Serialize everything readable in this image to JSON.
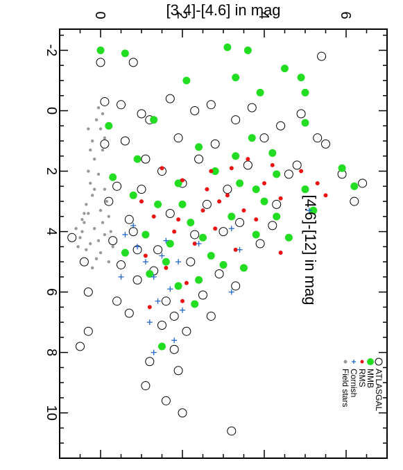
{
  "chart_data": {
    "type": "scatter",
    "title": "",
    "xlabel": "[3.4]-[4.6] in mag",
    "ylabel": "[4.6]-[12] in mag",
    "xlim": [
      -1.0,
      7.0
    ],
    "ylim": [
      11.5,
      -2.7
    ],
    "x_ticks": [
      0,
      2,
      4,
      6
    ],
    "y_ticks": [
      -2,
      0,
      2,
      4,
      6,
      8,
      10
    ],
    "orientation": "rotated 90 degrees clockwise",
    "legend": {
      "placement": "bottom-right",
      "entries": [
        {
          "label": "ATLASGAL",
          "marker": "open-circle",
          "color": "#000000"
        },
        {
          "label": "MMB",
          "marker": "filled-circle",
          "color": "#22dd22"
        },
        {
          "label": "RMS",
          "marker": "small-dot",
          "color": "#ee1111"
        },
        {
          "label": "Cornish",
          "marker": "plus",
          "color": "#2266cc"
        },
        {
          "label": "Field stars",
          "marker": "small-dot",
          "color": "#999999"
        }
      ]
    },
    "series": [
      {
        "name": "ATLASGAL",
        "points": [
          [
            0.0,
            -1.6
          ],
          [
            0.8,
            -1.6
          ],
          [
            5.4,
            -1.8
          ],
          [
            0.1,
            -0.3
          ],
          [
            0.5,
            -0.2
          ],
          [
            1.0,
            0.1
          ],
          [
            1.7,
            -0.4
          ],
          [
            2.3,
            0.0
          ],
          [
            2.7,
            -0.2
          ],
          [
            3.3,
            0.3
          ],
          [
            3.7,
            -0.1
          ],
          [
            4.4,
            0.5
          ],
          [
            4.9,
            0.1
          ],
          [
            5.3,
            0.9
          ],
          [
            5.5,
            1.1
          ],
          [
            4.8,
            1.8
          ],
          [
            5.9,
            2.1
          ],
          [
            6.4,
            2.4
          ],
          [
            6.2,
            3.0
          ],
          [
            0.1,
            1.1
          ],
          [
            0.4,
            2.5
          ],
          [
            0.7,
            3.6
          ],
          [
            0.9,
            4.6
          ],
          [
            1.3,
            5.3
          ],
          [
            1.6,
            6.3
          ],
          [
            2.1,
            7.3
          ],
          [
            2.5,
            6.1
          ],
          [
            1.8,
            7.9
          ],
          [
            1.2,
            8.3
          ],
          [
            1.1,
            9.1
          ],
          [
            1.6,
            9.6
          ],
          [
            2.0,
            10.0
          ],
          [
            3.2,
            10.6
          ],
          [
            -0.4,
            5.0
          ],
          [
            -0.7,
            4.2
          ],
          [
            -0.3,
            6.0
          ],
          [
            -0.3,
            7.3
          ],
          [
            -0.5,
            7.8
          ],
          [
            0.9,
            5.6
          ],
          [
            1.4,
            4.6
          ],
          [
            1.7,
            3.4
          ],
          [
            2.0,
            2.4
          ],
          [
            2.4,
            1.6
          ],
          [
            2.8,
            1.1
          ],
          [
            3.1,
            2.6
          ],
          [
            3.4,
            3.7
          ],
          [
            3.9,
            4.4
          ],
          [
            4.3,
            3.1
          ],
          [
            4.6,
            2.1
          ],
          [
            2.9,
            5.4
          ],
          [
            2.3,
            4.1
          ],
          [
            1.0,
            2.6
          ],
          [
            0.6,
            1.0
          ],
          [
            1.2,
            0.3
          ],
          [
            1.9,
            0.9
          ],
          [
            3.6,
            1.8
          ],
          [
            4.0,
            0.9
          ],
          [
            0.3,
            4.3
          ],
          [
            0.5,
            5.1
          ],
          [
            0.7,
            6.7
          ],
          [
            1.5,
            7.1
          ],
          [
            2.6,
            3.1
          ],
          [
            3.0,
            4.0
          ],
          [
            1.1,
            1.6
          ],
          [
            2.2,
            5.0
          ],
          [
            1.5,
            2.0
          ],
          [
            0.2,
            3.0
          ],
          [
            0.8,
            4.0
          ],
          [
            4.2,
            3.8
          ],
          [
            3.3,
            5.8
          ],
          [
            2.7,
            6.8
          ],
          [
            1.9,
            8.6
          ],
          [
            0.4,
            6.3
          ],
          [
            1.8,
            6.8
          ]
        ]
      },
      {
        "name": "MMB",
        "points": [
          [
            0.0,
            -2.0
          ],
          [
            0.6,
            -1.9
          ],
          [
            3.1,
            -2.1
          ],
          [
            3.6,
            -2.0
          ],
          [
            4.5,
            -1.4
          ],
          [
            4.9,
            -1.1
          ],
          [
            3.3,
            -1.1
          ],
          [
            2.1,
            -1.0
          ],
          [
            3.9,
            -0.6
          ],
          [
            5.0,
            -0.6
          ],
          [
            5.0,
            0.4
          ],
          [
            1.3,
            0.3
          ],
          [
            0.2,
            0.5
          ],
          [
            2.4,
            1.2
          ],
          [
            2.8,
            2.0
          ],
          [
            3.3,
            1.5
          ],
          [
            3.7,
            0.9
          ],
          [
            4.2,
            1.4
          ],
          [
            1.9,
            2.4
          ],
          [
            1.4,
            3.1
          ],
          [
            1.7,
            4.4
          ],
          [
            2.2,
            3.7
          ],
          [
            2.7,
            4.8
          ],
          [
            3.2,
            3.5
          ],
          [
            3.8,
            2.6
          ],
          [
            4.3,
            2.1
          ],
          [
            5.0,
            2.6
          ],
          [
            5.2,
            3.3
          ],
          [
            4.3,
            3.5
          ],
          [
            3.8,
            4.1
          ],
          [
            3.0,
            5.1
          ],
          [
            2.4,
            5.6
          ],
          [
            1.6,
            5.0
          ],
          [
            1.1,
            4.1
          ],
          [
            0.8,
            2.8
          ],
          [
            0.9,
            1.6
          ],
          [
            0.3,
            2.2
          ],
          [
            1.2,
            5.4
          ],
          [
            2.3,
            6.4
          ],
          [
            1.5,
            7.8
          ],
          [
            5.9,
            1.9
          ],
          [
            6.2,
            2.5
          ],
          [
            4.6,
            4.2
          ],
          [
            3.5,
            5.2
          ],
          [
            2.5,
            4.2
          ],
          [
            2.0,
            3.1
          ],
          [
            3.4,
            2.4
          ],
          [
            4.0,
            3.0
          ],
          [
            0.6,
            4.7
          ],
          [
            1.9,
            5.8
          ]
        ]
      },
      {
        "name": "RMS",
        "points": [
          [
            1.5,
            1.9
          ],
          [
            2.0,
            2.3
          ],
          [
            2.6,
            2.6
          ],
          [
            3.1,
            2.8
          ],
          [
            3.5,
            3.3
          ],
          [
            4.0,
            2.4
          ],
          [
            4.4,
            2.9
          ],
          [
            4.9,
            2.0
          ],
          [
            5.3,
            2.4
          ],
          [
            5.5,
            2.8
          ],
          [
            1.3,
            3.5
          ],
          [
            1.8,
            4.0
          ],
          [
            2.3,
            4.4
          ],
          [
            2.8,
            3.9
          ],
          [
            3.3,
            4.6
          ],
          [
            1.1,
            4.8
          ],
          [
            1.6,
            5.2
          ],
          [
            2.1,
            5.7
          ],
          [
            2.9,
            3.0
          ],
          [
            3.8,
            3.6
          ],
          [
            4.2,
            1.8
          ],
          [
            1.0,
            3.0
          ],
          [
            2.5,
            3.3
          ],
          [
            3.6,
            1.6
          ],
          [
            4.4,
            4.7
          ],
          [
            2.0,
            6.3
          ],
          [
            1.2,
            6.5
          ],
          [
            2.7,
            2.0
          ],
          [
            3.2,
            1.9
          ],
          [
            1.9,
            3.6
          ]
        ]
      },
      {
        "name": "Cornish",
        "points": [
          [
            0.6,
            4.1
          ],
          [
            0.9,
            4.5
          ],
          [
            1.1,
            5.0
          ],
          [
            1.3,
            5.5
          ],
          [
            1.5,
            4.8
          ],
          [
            1.7,
            5.9
          ],
          [
            1.4,
            6.3
          ],
          [
            1.2,
            7.0
          ],
          [
            1.8,
            7.6
          ],
          [
            1.3,
            8.0
          ],
          [
            2.0,
            6.6
          ],
          [
            0.8,
            3.8
          ],
          [
            1.6,
            4.3
          ],
          [
            3.2,
            3.9
          ],
          [
            3.4,
            4.6
          ],
          [
            3.2,
            6.0
          ],
          [
            5.1,
            3.3
          ],
          [
            0.5,
            5.5
          ],
          [
            1.9,
            5.0
          ],
          [
            2.4,
            4.4
          ]
        ]
      },
      {
        "name": "Field stars",
        "points": [
          [
            -0.3,
            0.6
          ],
          [
            -0.2,
            1.0
          ],
          [
            -0.15,
            1.6
          ],
          [
            -0.3,
            2.0
          ],
          [
            -0.25,
            2.4
          ],
          [
            -0.2,
            2.8
          ],
          [
            -0.35,
            3.1
          ],
          [
            -0.3,
            3.4
          ],
          [
            -0.4,
            3.7
          ],
          [
            -0.45,
            4.0
          ],
          [
            -0.5,
            4.2
          ],
          [
            -0.55,
            4.5
          ],
          [
            -0.35,
            4.6
          ],
          [
            -0.25,
            4.4
          ],
          [
            -0.1,
            4.9
          ],
          [
            -0.2,
            5.2
          ],
          [
            -0.1,
            0.3
          ],
          [
            -0.05,
            -0.1
          ],
          [
            0.0,
            0.6
          ],
          [
            0.1,
            0.9
          ],
          [
            0.05,
            1.3
          ],
          [
            -0.05,
            2.1
          ],
          [
            0.1,
            2.6
          ],
          [
            0.15,
            3.0
          ],
          [
            0.0,
            3.3
          ],
          [
            0.05,
            3.7
          ],
          [
            0.1,
            4.1
          ],
          [
            -0.15,
            3.9
          ],
          [
            -0.05,
            4.3
          ],
          [
            0.0,
            4.7
          ],
          [
            0.2,
            3.5
          ],
          [
            0.25,
            4.0
          ],
          [
            0.3,
            4.5
          ],
          [
            0.2,
            5.0
          ],
          [
            -0.4,
            3.4
          ],
          [
            -0.6,
            3.9
          ],
          [
            -0.45,
            3.6
          ],
          [
            -0.15,
            2.6
          ],
          [
            0.05,
            0.1
          ],
          [
            -0.25,
            1.3
          ]
        ]
      }
    ]
  }
}
